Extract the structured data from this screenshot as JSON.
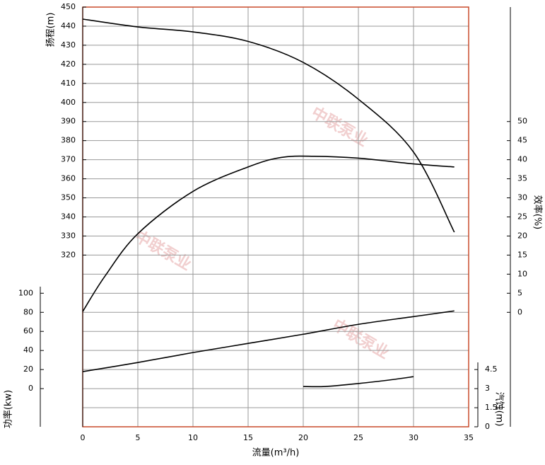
{
  "chart_data": {
    "type": "line",
    "x_label": "流量(m³/h)",
    "xlim": [
      0,
      35
    ],
    "xticks": [
      0,
      5,
      10,
      15,
      20,
      25,
      30,
      35
    ],
    "watermark": "中联泵业",
    "axes": [
      {
        "label": "扬程(m)",
        "lim": [
          230,
          450
        ],
        "ticks": [
          320,
          330,
          340,
          350,
          360,
          370,
          380,
          390,
          400,
          410,
          420,
          430,
          440,
          450
        ],
        "gridlines": [
          240,
          250,
          260,
          270,
          280,
          290,
          300,
          310,
          320,
          330,
          340,
          350,
          360,
          370,
          380,
          390,
          400,
          410,
          420,
          430,
          440
        ]
      },
      {
        "label": "功率(kw)",
        "lim": [
          -40,
          400
        ],
        "ticks": [
          0,
          20,
          40,
          60,
          80,
          100
        ]
      },
      {
        "label": "效率(%)",
        "lim": [
          -30,
          80
        ],
        "ticks": [
          0,
          5,
          10,
          15,
          20,
          25,
          30,
          35,
          40,
          45,
          50
        ]
      },
      {
        "label": "汽蚀(m)",
        "lim": [
          0,
          33
        ],
        "ticks": [
          0,
          1.5,
          3,
          4.5
        ]
      }
    ],
    "series": [
      {
        "axis": 0,
        "color": "#000000",
        "x": [
          0,
          5,
          10,
          15,
          20,
          25,
          30,
          33.7
        ],
        "values": [
          443.7,
          439.6,
          437,
          432,
          421,
          401.7,
          374,
          332
        ]
      },
      {
        "axis": 2,
        "color": "#000000",
        "x": [
          0,
          2,
          5,
          10,
          15,
          18,
          21,
          25,
          30,
          33.7
        ],
        "values": [
          0.2,
          9.4,
          20.6,
          31.7,
          38.1,
          40.6,
          40.9,
          40.4,
          38.9,
          38.1
        ]
      },
      {
        "axis": 1,
        "color": "#000000",
        "x": [
          0,
          5,
          10,
          15,
          20,
          25,
          30,
          33.7
        ],
        "values": [
          17.8,
          27.4,
          37.8,
          47.4,
          57,
          67.4,
          75.5,
          81.5
        ]
      },
      {
        "axis": 3,
        "color": "#000000",
        "x": [
          20,
          22,
          25,
          28,
          30
        ],
        "values": [
          3.17,
          3.17,
          3.4,
          3.7,
          3.94
        ]
      }
    ]
  }
}
